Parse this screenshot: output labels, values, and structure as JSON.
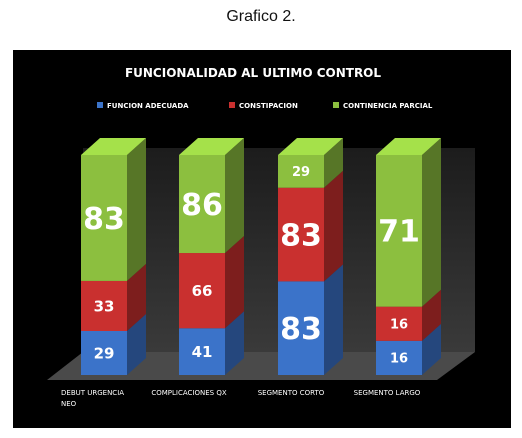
{
  "caption": "Grafico 2.",
  "chart_data": {
    "type": "bar",
    "stacked": true,
    "title": "FUNCIONALIDAD AL ULTIMO CONTROL",
    "categories": [
      "DEBUT URGENCIA NEO",
      "COMPLICACIONES QX",
      "SEGMENTO CORTO",
      "SEGMENTO LARGO"
    ],
    "series": [
      {
        "name": "FUNCION ADECUADA",
        "values": [
          29,
          41,
          83,
          16
        ],
        "color": "#3b73c9"
      },
      {
        "name": "CONSTIPACION",
        "values": [
          33,
          66,
          83,
          16
        ],
        "color": "#c9302f"
      },
      {
        "name": "CONTINENCIA PARCIAL",
        "values": [
          83,
          86,
          29,
          71
        ],
        "color": "#8cbf3f"
      }
    ],
    "legend": "top",
    "grid": false,
    "background": "#000000"
  }
}
